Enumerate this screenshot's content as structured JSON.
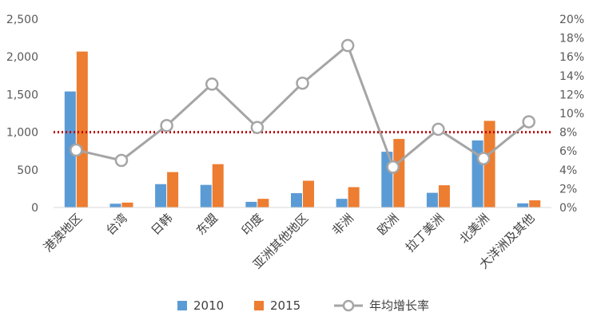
{
  "chart_data": {
    "type": "bar",
    "categories": [
      "港澳地区",
      "台湾",
      "日韩",
      "东盟",
      "印度",
      "亚洲其他地区",
      "非洲",
      "欧洲",
      "拉丁美洲",
      "北美洲",
      "大洋洲及其他"
    ],
    "series": [
      {
        "name": "2010",
        "type": "bar",
        "axis": "left",
        "color": "#5B9BD5",
        "values": [
          1540,
          50,
          310,
          300,
          75,
          190,
          115,
          740,
          195,
          890,
          55
        ]
      },
      {
        "name": "2015",
        "type": "bar",
        "axis": "left",
        "color": "#ED7D31",
        "values": [
          2070,
          65,
          470,
          575,
          115,
          355,
          270,
          910,
          295,
          1150,
          95
        ]
      },
      {
        "name": "年均增长率",
        "type": "line",
        "axis": "right",
        "color": "#A5A5A5",
        "values": [
          6.1,
          5.0,
          8.7,
          13.1,
          8.5,
          13.2,
          17.2,
          4.3,
          8.3,
          5.2,
          9.1
        ]
      }
    ],
    "y_left": {
      "min": 0,
      "max": 2500,
      "step": 500,
      "tick_labels": [
        "0",
        "500",
        "1,000",
        "1,500",
        "2,000",
        "2,500"
      ]
    },
    "y_right": {
      "min": 0,
      "max": 20,
      "step": 2,
      "tick_labels": [
        "0%",
        "2%",
        "4%",
        "6%",
        "8%",
        "10%",
        "12%",
        "14%",
        "16%",
        "18%",
        "20%"
      ]
    },
    "reference_line": {
      "axis": "right",
      "value": 8,
      "style": "dotted",
      "color": "#C00000"
    },
    "grid": false,
    "legend_position": "bottom",
    "legend": [
      {
        "label": "2010",
        "marker": "square",
        "color": "#5B9BD5"
      },
      {
        "label": "2015",
        "marker": "square",
        "color": "#ED7D31"
      },
      {
        "label": "年均增长率",
        "marker": "line-circle",
        "color": "#A5A5A5"
      }
    ]
  }
}
